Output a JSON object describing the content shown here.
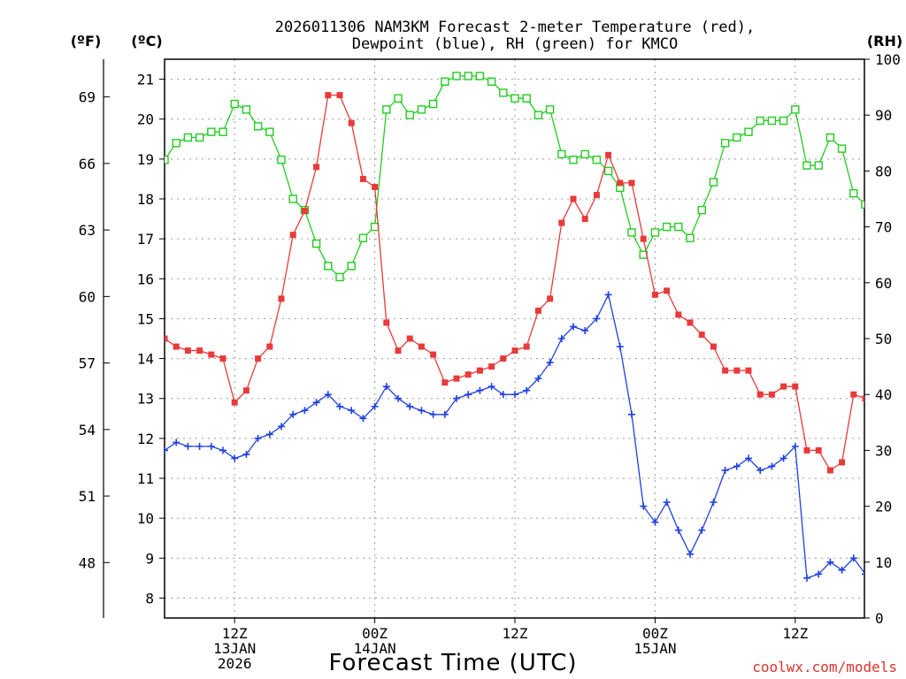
{
  "chart_data": {
    "type": "line",
    "title_line1": "2026011306 NAM3KM Forecast 2-meter Temperature (red),",
    "title_line2": "Dewpoint (blue), RH (green) for KMCO",
    "xlabel": "Forecast Time (UTC)",
    "credit": "coolwx.com/models",
    "units": {
      "fahrenheit": "(ºF)",
      "celsius": "(ºC)",
      "rh": "(RH)"
    },
    "time_step_hours": 1,
    "celsius_ylim": [
      7.5,
      21.5
    ],
    "celsius_ticks": [
      "8",
      "9",
      "10",
      "11",
      "12",
      "13",
      "14",
      "15",
      "16",
      "17",
      "18",
      "19",
      "20",
      "21"
    ],
    "fahrenheit_ticks": [
      {
        "label": "48",
        "value": 48
      },
      {
        "label": "51",
        "value": 51
      },
      {
        "label": "54",
        "value": 54
      },
      {
        "label": "57",
        "value": 57
      },
      {
        "label": "60",
        "value": 60
      },
      {
        "label": "63",
        "value": 63
      },
      {
        "label": "66",
        "value": 66
      },
      {
        "label": "69",
        "value": 69
      }
    ],
    "rh_ylim": [
      0,
      100
    ],
    "rh_ticks": [
      "0",
      "10",
      "20",
      "30",
      "40",
      "50",
      "60",
      "70",
      "80",
      "90",
      "100"
    ],
    "x_ticks": [
      {
        "hour": 6,
        "lines": [
          "12Z",
          "13JAN",
          "2026"
        ]
      },
      {
        "hour": 18,
        "lines": [
          "00Z",
          "14JAN"
        ]
      },
      {
        "hour": 30,
        "lines": [
          "12Z"
        ]
      },
      {
        "hour": 42,
        "lines": [
          "00Z",
          "15JAN"
        ]
      },
      {
        "hour": 54,
        "lines": [
          "12Z"
        ]
      }
    ],
    "x_range_hours": [
      0,
      59.5
    ],
    "grid": true,
    "series": [
      {
        "name": "Temperature",
        "color": "#e83a3a",
        "marker": "filled-square",
        "unit": "C",
        "values": [
          14.5,
          14.3,
          14.2,
          14.2,
          14.1,
          14.0,
          12.9,
          13.2,
          14.0,
          14.3,
          15.5,
          17.1,
          17.7,
          18.8,
          20.6,
          20.6,
          19.9,
          18.5,
          18.3,
          14.9,
          14.2,
          14.5,
          14.3,
          14.1,
          13.4,
          13.5,
          13.6,
          13.7,
          13.8,
          14.0,
          14.2,
          14.3,
          15.2,
          15.5,
          17.4,
          18.0,
          17.5,
          18.1,
          19.1,
          18.4,
          18.4,
          17.0,
          15.6,
          15.7,
          15.1,
          14.9,
          14.6,
          14.3,
          13.7,
          13.7,
          13.7,
          13.1,
          13.1,
          13.3,
          13.3,
          11.7,
          11.7,
          11.2,
          11.4,
          13.1,
          13.0
        ]
      },
      {
        "name": "Dewpoint",
        "color": "#2040e0",
        "marker": "plus",
        "unit": "C",
        "values": [
          11.7,
          11.9,
          11.8,
          11.8,
          11.8,
          11.7,
          11.5,
          11.6,
          12.0,
          12.1,
          12.3,
          12.6,
          12.7,
          12.9,
          13.1,
          12.8,
          12.7,
          12.5,
          12.8,
          13.3,
          13.0,
          12.8,
          12.7,
          12.6,
          12.6,
          13.0,
          13.1,
          13.2,
          13.3,
          13.1,
          13.1,
          13.2,
          13.5,
          13.9,
          14.5,
          14.8,
          14.7,
          15.0,
          15.6,
          14.3,
          12.6,
          10.3,
          9.9,
          10.4,
          9.7,
          9.1,
          9.7,
          10.4,
          11.2,
          11.3,
          11.5,
          11.2,
          11.3,
          11.5,
          11.8,
          8.5,
          8.6,
          8.9,
          8.7,
          9.0,
          8.6
        ]
      },
      {
        "name": "RH",
        "color": "#22cc22",
        "marker": "open-square",
        "unit": "%",
        "values": [
          82,
          85,
          86,
          86,
          87,
          87,
          92,
          91,
          88,
          87,
          82,
          75,
          73,
          67,
          63,
          61,
          63,
          68,
          70,
          91,
          93,
          90,
          91,
          92,
          96,
          97,
          97,
          97,
          96,
          94,
          93,
          93,
          90,
          91,
          83,
          82,
          83,
          82,
          80,
          77,
          69,
          65,
          69,
          70,
          70,
          68,
          73,
          78,
          85,
          86,
          87,
          89,
          89,
          89,
          91,
          81,
          81,
          86,
          84,
          76,
          74
        ]
      }
    ]
  }
}
